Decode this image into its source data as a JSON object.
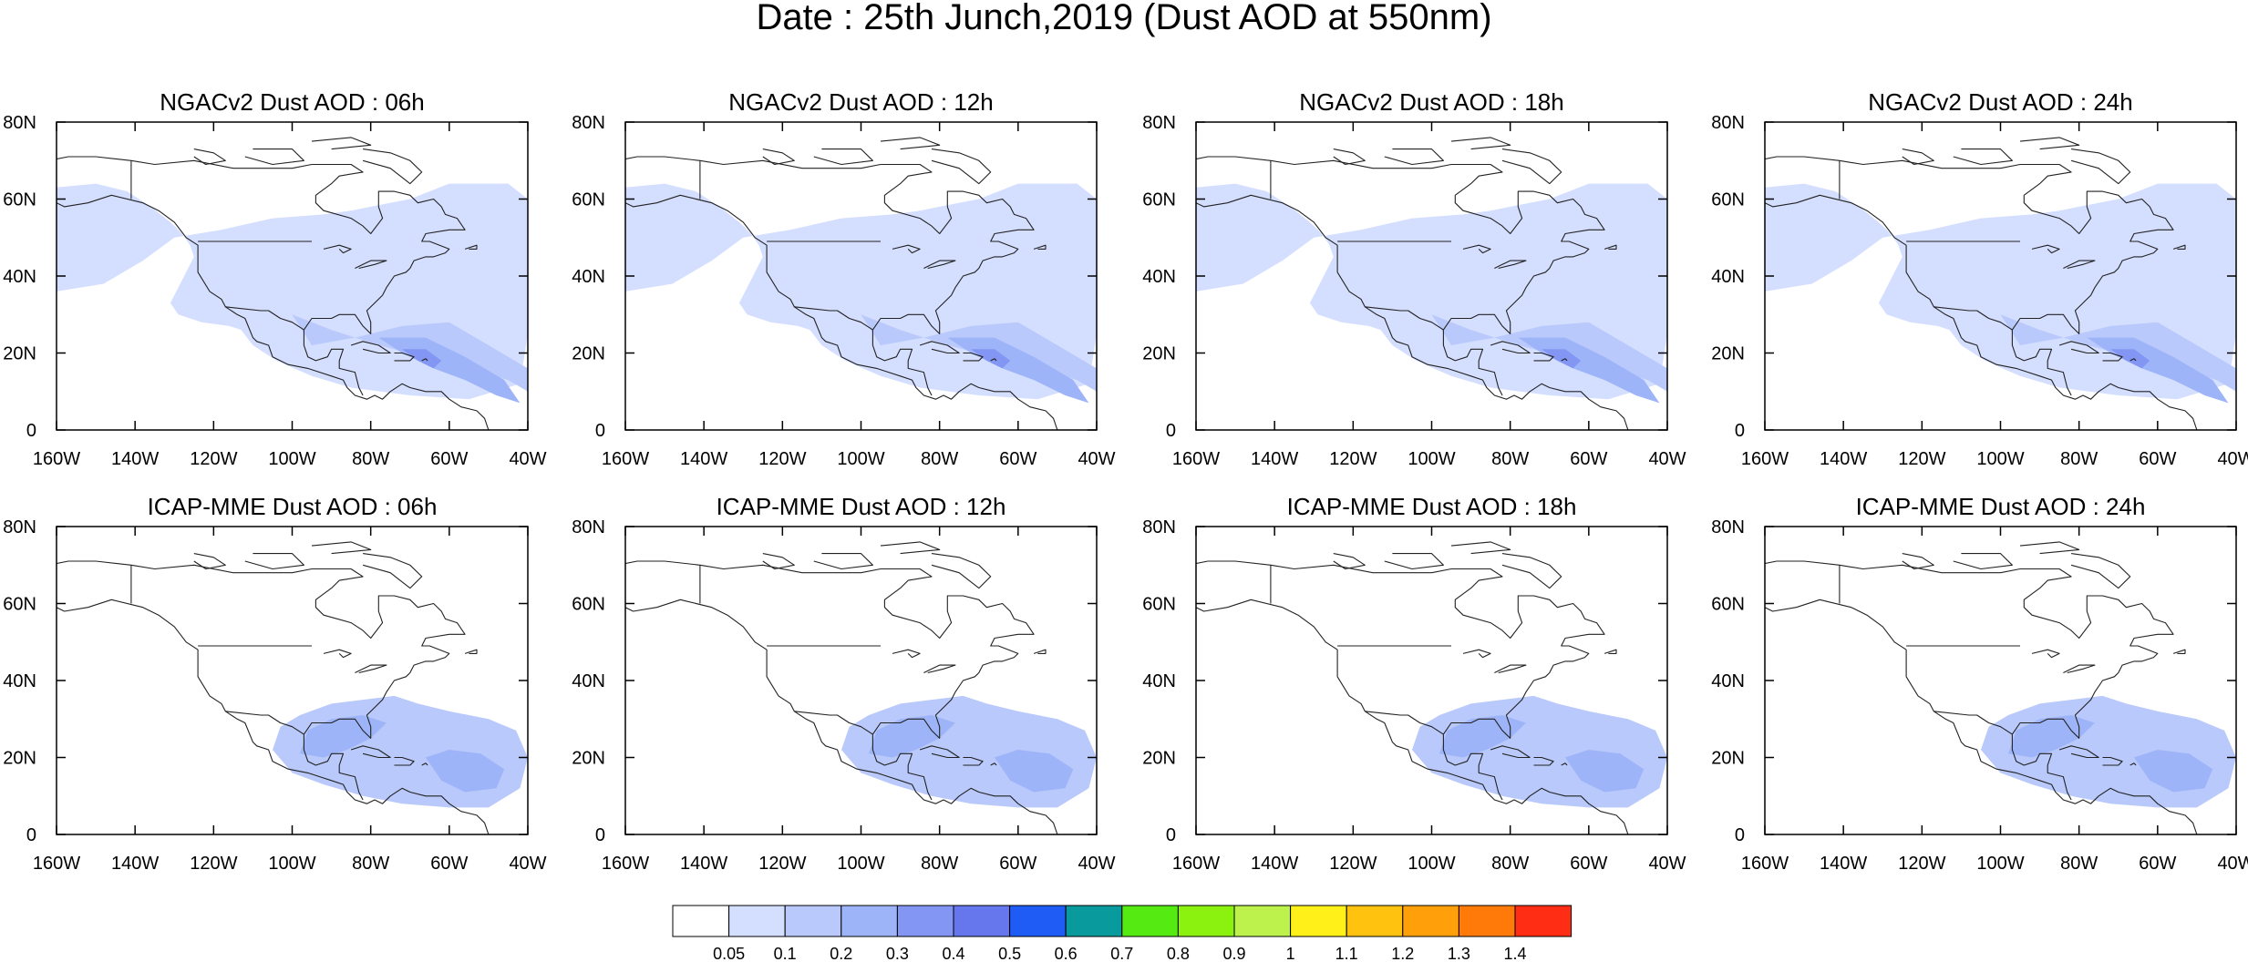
{
  "title": "Date : 25th Junch,2019 (Dust AOD at 550nm)",
  "axes": {
    "lon_ticks": [
      "160W",
      "140W",
      "120W",
      "100W",
      "80W",
      "60W",
      "40W"
    ],
    "lat_ticks": [
      "0",
      "20N",
      "40N",
      "60N",
      "80N"
    ],
    "lon_range": [
      -160,
      -40
    ],
    "lat_range": [
      0,
      80
    ]
  },
  "panels": [
    {
      "title": "NGACv2 Dust AOD : 06h"
    },
    {
      "title": "NGACv2 Dust AOD : 12h"
    },
    {
      "title": "NGACv2 Dust AOD : 18h"
    },
    {
      "title": "NGACv2 Dust AOD : 24h"
    },
    {
      "title": "ICAP-MME Dust AOD : 06h"
    },
    {
      "title": "ICAP-MME Dust AOD : 12h"
    },
    {
      "title": "ICAP-MME Dust AOD : 18h"
    },
    {
      "title": "ICAP-MME Dust AOD : 24h"
    }
  ],
  "colorbar": {
    "labels": [
      "0.05",
      "0.1",
      "0.2",
      "0.3",
      "0.4",
      "0.5",
      "0.6",
      "0.7",
      "0.8",
      "0.9",
      "1",
      "1.1",
      "1.2",
      "1.3",
      "1.4"
    ],
    "colors": [
      "#ffffff",
      "#d4deff",
      "#b9c9fb",
      "#9eb4f8",
      "#8496f3",
      "#6677ee",
      "#1e5cf5",
      "#089a9c",
      "#55ea12",
      "#8af20e",
      "#bdf24d",
      "#fff01a",
      "#ffc20e",
      "#ffa00a",
      "#ff7a08",
      "#ff2d14"
    ]
  }
}
